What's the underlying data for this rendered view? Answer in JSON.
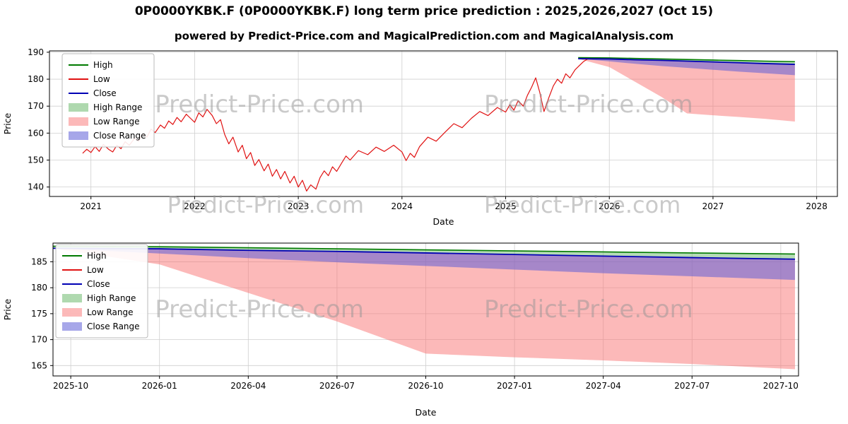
{
  "header": {
    "title": "0P0000YKBK.F (0P0000YKBK.F) long term price prediction : 2025,2026,2027 (Oct 15)",
    "subtitle": "powered by Predict-Price.com and MagicalPrediction.com and MagicalAnalysis.com"
  },
  "watermark": {
    "text": "Predict-Price.com"
  },
  "chart_data": {
    "type": "line",
    "ticker": "0P0000YKBK.F",
    "prediction_years": "2025,2026,2027",
    "prediction_date": "Oct 15",
    "legend": [
      {
        "label": "High",
        "swatch": "line",
        "color": "#007a00"
      },
      {
        "label": "Low",
        "swatch": "line",
        "color": "#e01212"
      },
      {
        "label": "Close",
        "swatch": "line",
        "color": "#0000b4"
      },
      {
        "label": "High Range",
        "swatch": "patch",
        "color": "rgba(110,185,110,0.55)"
      },
      {
        "label": "Low Range",
        "swatch": "patch",
        "color": "rgba(250,115,115,0.5)"
      },
      {
        "label": "Close Range",
        "swatch": "patch",
        "color": "rgba(95,95,215,0.55)"
      }
    ],
    "datasets": {
      "historical_low": {
        "x": [
          2020.92,
          2020.96,
          2021.0,
          2021.04,
          2021.08,
          2021.12,
          2021.17,
          2021.21,
          2021.25,
          2021.29,
          2021.33,
          2021.37,
          2021.42,
          2021.46,
          2021.5,
          2021.54,
          2021.58,
          2021.62,
          2021.67,
          2021.71,
          2021.75,
          2021.79,
          2021.83,
          2021.87,
          2021.92,
          2021.96,
          2022.0,
          2022.04,
          2022.08,
          2022.12,
          2022.17,
          2022.21,
          2022.25,
          2022.29,
          2022.33,
          2022.37,
          2022.42,
          2022.46,
          2022.5,
          2022.54,
          2022.58,
          2022.62,
          2022.67,
          2022.71,
          2022.75,
          2022.79,
          2022.83,
          2022.87,
          2022.92,
          2022.96,
          2023.0,
          2023.04,
          2023.08,
          2023.12,
          2023.17,
          2023.21,
          2023.25,
          2023.29,
          2023.33,
          2023.37,
          2023.42,
          2023.46,
          2023.5,
          2023.58,
          2023.67,
          2023.75,
          2023.83,
          2023.92,
          2024.0,
          2024.04,
          2024.08,
          2024.12,
          2024.17,
          2024.25,
          2024.33,
          2024.42,
          2024.5,
          2024.58,
          2024.67,
          2024.75,
          2024.83,
          2024.92,
          2025.0,
          2025.04,
          2025.08,
          2025.12,
          2025.17,
          2025.21,
          2025.25,
          2025.29,
          2025.33,
          2025.37,
          2025.42,
          2025.46,
          2025.5,
          2025.54,
          2025.58,
          2025.62,
          2025.67,
          2025.71,
          2025.75,
          2025.79
        ],
        "y": [
          152.5,
          154.0,
          152.8,
          155.0,
          153.2,
          155.8,
          154.0,
          153.0,
          155.5,
          154.2,
          156.8,
          155.5,
          158.0,
          157.0,
          159.8,
          158.5,
          161.5,
          160.2,
          163.0,
          161.8,
          164.5,
          163.2,
          165.8,
          164.2,
          167.0,
          165.5,
          164.0,
          167.5,
          166.0,
          168.8,
          166.5,
          163.5,
          165.0,
          159.5,
          156.0,
          158.5,
          153.0,
          155.5,
          150.5,
          152.8,
          148.0,
          150.2,
          146.0,
          148.5,
          144.0,
          146.5,
          143.0,
          145.8,
          141.5,
          144.0,
          140.0,
          142.5,
          138.5,
          140.8,
          139.2,
          143.5,
          146.0,
          144.2,
          147.5,
          145.8,
          149.0,
          151.5,
          150.0,
          153.5,
          152.0,
          154.8,
          153.2,
          155.5,
          153.0,
          149.8,
          152.5,
          151.0,
          155.0,
          158.5,
          157.0,
          160.5,
          163.5,
          162.0,
          165.5,
          168.0,
          166.5,
          169.5,
          167.8,
          170.5,
          168.5,
          172.0,
          170.0,
          174.0,
          177.0,
          180.5,
          175.0,
          168.0,
          173.5,
          177.5,
          180.0,
          178.5,
          182.0,
          180.5,
          183.5,
          185.0,
          186.5,
          187.5
        ]
      },
      "forecast": {
        "x": [
          2025.7,
          2026.0,
          2026.25,
          2026.5,
          2026.75,
          2027.0,
          2027.25,
          2027.5,
          2027.79
        ],
        "high": [
          188.0,
          187.9,
          187.7,
          187.5,
          187.3,
          187.1,
          186.9,
          186.7,
          186.5
        ],
        "close": [
          187.6,
          187.5,
          187.2,
          187.0,
          186.7,
          186.4,
          186.1,
          185.8,
          185.5
        ],
        "close_lower": [
          187.6,
          186.6,
          185.7,
          184.9,
          184.2,
          183.5,
          182.8,
          182.2,
          181.5
        ],
        "low_lower": [
          187.6,
          184.5,
          179.0,
          173.5,
          167.3,
          166.6,
          166.0,
          165.3,
          164.3
        ]
      }
    },
    "charts": [
      {
        "name": "overview",
        "xlabel": "Date",
        "ylabel": "Price",
        "xlim": [
          2020.6,
          2028.2
        ],
        "ylim": [
          136.5,
          190.5
        ],
        "xticks": [
          2021,
          2022,
          2023,
          2024,
          2025,
          2026,
          2027,
          2028
        ],
        "xtick_labels": [
          "2021",
          "2022",
          "2023",
          "2024",
          "2025",
          "2026",
          "2027",
          "2028"
        ],
        "yticks": [
          140,
          150,
          160,
          170,
          180,
          190
        ],
        "ytick_labels": [
          "140",
          "150",
          "160",
          "170",
          "180",
          "190"
        ],
        "grid": true,
        "bands": [
          {
            "name": "high-range-band",
            "x": "forecast.x",
            "upper": "forecast.high",
            "lower": "forecast.close",
            "color": "rgba(110,185,110,0.5)"
          },
          {
            "name": "low-range-band",
            "x": "forecast.x",
            "upper": "forecast.close",
            "lower": "forecast.low_lower",
            "color": "rgba(250,115,115,0.5)"
          },
          {
            "name": "close-range-band",
            "x": "forecast.x",
            "upper": "forecast.close",
            "lower": "forecast.close_lower",
            "color": "rgba(95,95,215,0.55)"
          }
        ],
        "lines": [
          {
            "name": "low-line",
            "x": "historical_low.x",
            "y": "historical_low.y",
            "color": "#e01212",
            "width": 1.2
          },
          {
            "name": "high-line",
            "x": "forecast.x",
            "y": "forecast.high",
            "color": "#007a00",
            "width": 1.6
          },
          {
            "name": "close-line",
            "x": "forecast.x",
            "y": "forecast.close",
            "color": "#0000b4",
            "width": 1.8
          }
        ]
      },
      {
        "name": "forecast-detail",
        "xlabel": "Date",
        "ylabel": "Price",
        "xlim": [
          2025.7,
          2027.8
        ],
        "ylim": [
          163.0,
          188.6
        ],
        "xticks": [
          2025.75,
          2026.0,
          2026.25,
          2026.5,
          2026.75,
          2027.0,
          2027.25,
          2027.5,
          2027.75
        ],
        "xtick_labels": [
          "2025-10",
          "2026-01",
          "2026-04",
          "2026-07",
          "2026-10",
          "2027-01",
          "2027-04",
          "2027-07",
          "2027-10"
        ],
        "yticks": [
          165,
          170,
          175,
          180,
          185
        ],
        "ytick_labels": [
          "165",
          "170",
          "175",
          "180",
          "185"
        ],
        "grid": true,
        "bands": [
          {
            "name": "high-range-band",
            "x": "forecast.x",
            "upper": "forecast.high",
            "lower": "forecast.close",
            "color": "rgba(110,185,110,0.5)"
          },
          {
            "name": "low-range-band",
            "x": "forecast.x",
            "upper": "forecast.close",
            "lower": "forecast.low_lower",
            "color": "rgba(250,115,115,0.5)"
          },
          {
            "name": "close-range-band",
            "x": "forecast.x",
            "upper": "forecast.close",
            "lower": "forecast.close_lower",
            "color": "rgba(95,95,215,0.55)"
          }
        ],
        "lines": [
          {
            "name": "high-line",
            "x": "forecast.x",
            "y": "forecast.high",
            "color": "#007a00",
            "width": 1.6
          },
          {
            "name": "close-line",
            "x": "forecast.x",
            "y": "forecast.close",
            "color": "#0000b4",
            "width": 1.8
          }
        ]
      }
    ]
  }
}
